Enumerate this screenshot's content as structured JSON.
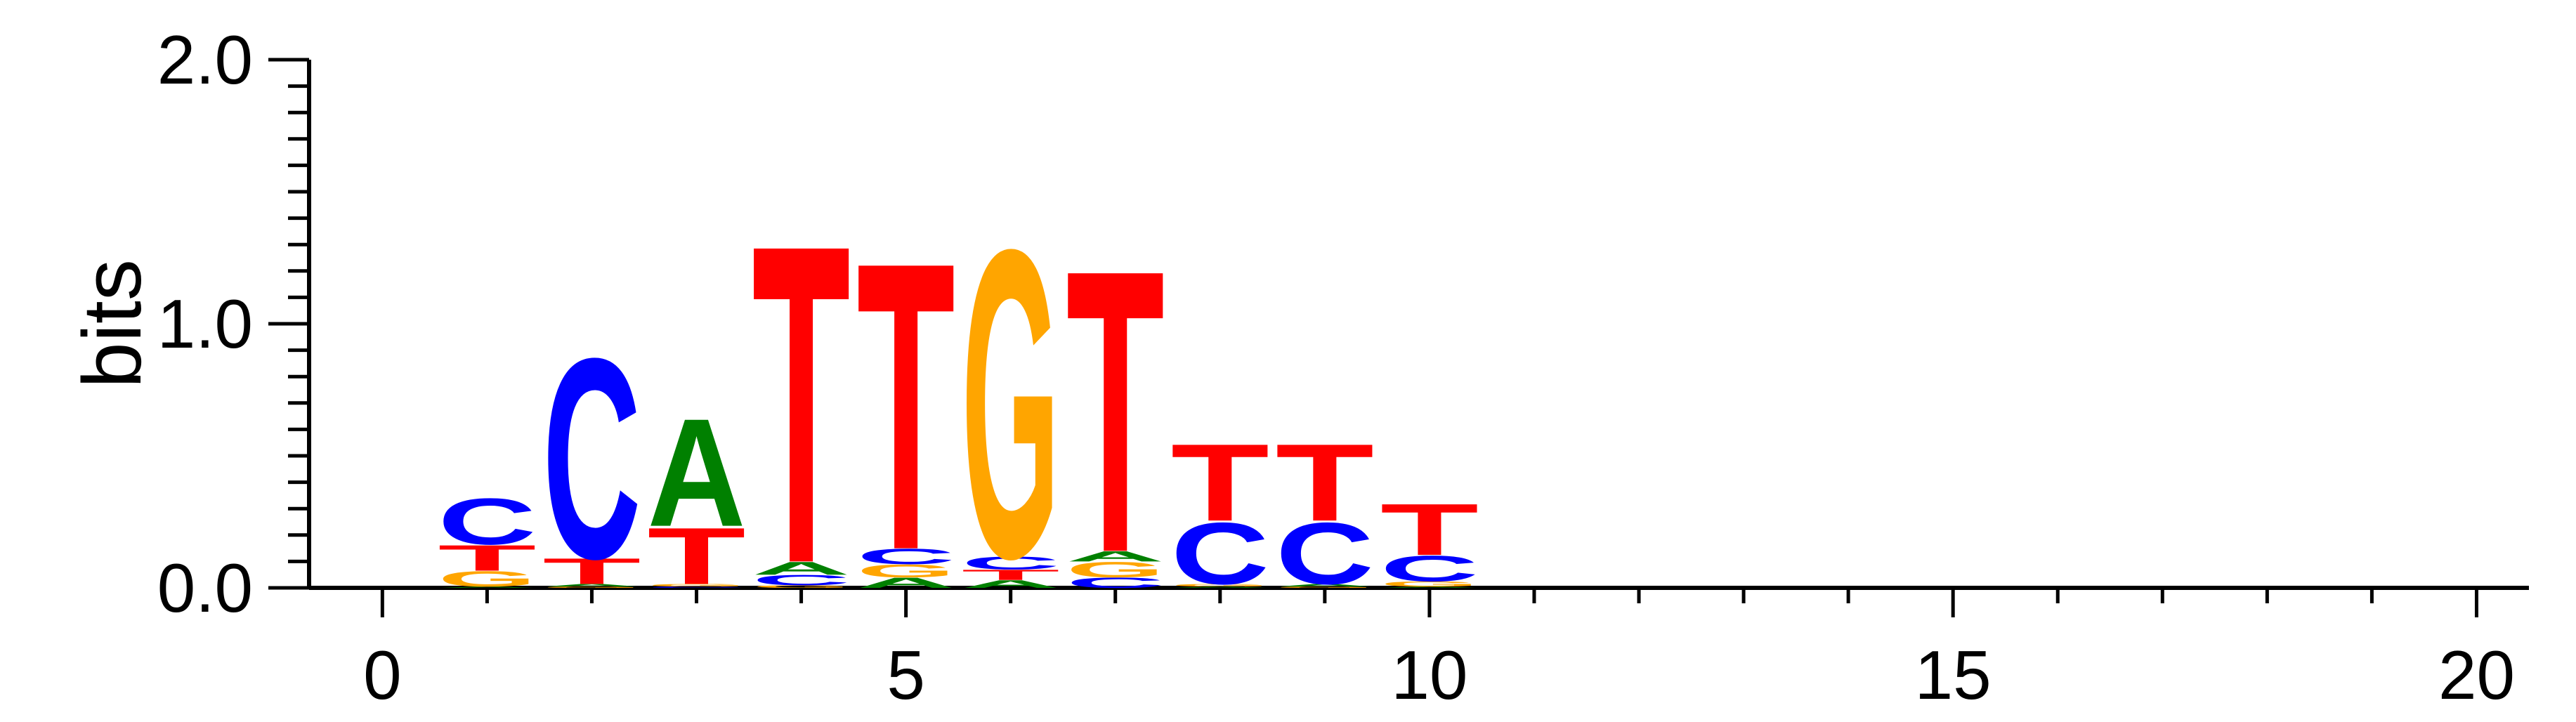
{
  "chart_data": {
    "type": "sequence-logo",
    "ylabel": "bits",
    "ylim": [
      0,
      2
    ],
    "xlim": [
      -0.7,
      20.5
    ],
    "y_ticks": [
      {
        "value": 0,
        "label": "0.0"
      },
      {
        "value": 1,
        "label": "1.0"
      },
      {
        "value": 2,
        "label": "2.0"
      }
    ],
    "x_ticks": [
      {
        "value": 0,
        "label": "0"
      },
      {
        "value": 5,
        "label": "5"
      },
      {
        "value": 10,
        "label": "10"
      },
      {
        "value": 15,
        "label": "15"
      },
      {
        "value": 20,
        "label": "20"
      }
    ],
    "colors": {
      "A": "#008000",
      "C": "#0000ff",
      "G": "#ffa500",
      "T": "#ff0000"
    },
    "positions": [
      {
        "position": 1,
        "letters": [
          {
            "base": "A",
            "bits": 0.005
          },
          {
            "base": "G",
            "bits": 0.06
          },
          {
            "base": "T",
            "bits": 0.1
          },
          {
            "base": "C",
            "bits": 0.18
          }
        ]
      },
      {
        "position": 2,
        "letters": [
          {
            "base": "G",
            "bits": 0.005
          },
          {
            "base": "A",
            "bits": 0.01
          },
          {
            "base": "T",
            "bits": 0.1
          },
          {
            "base": "C",
            "bits": 0.78
          }
        ]
      },
      {
        "position": 3,
        "letters": [
          {
            "base": "C",
            "bits": 0.005
          },
          {
            "base": "G",
            "bits": 0.01
          },
          {
            "base": "T",
            "bits": 0.22
          },
          {
            "base": "A",
            "bits": 0.42
          }
        ]
      },
      {
        "position": 4,
        "letters": [
          {
            "base": "G",
            "bits": 0.01
          },
          {
            "base": "C",
            "bits": 0.04
          },
          {
            "base": "A",
            "bits": 0.05
          },
          {
            "base": "T",
            "bits": 1.24
          }
        ]
      },
      {
        "position": 5,
        "letters": [
          {
            "base": "A",
            "bits": 0.04
          },
          {
            "base": "G",
            "bits": 0.05
          },
          {
            "base": "C",
            "bits": 0.06
          },
          {
            "base": "T",
            "bits": 1.12
          }
        ]
      },
      {
        "position": 6,
        "letters": [
          {
            "base": "A",
            "bits": 0.03
          },
          {
            "base": "T",
            "bits": 0.04
          },
          {
            "base": "C",
            "bits": 0.05
          },
          {
            "base": "G",
            "bits": 1.2
          }
        ]
      },
      {
        "position": 7,
        "letters": [
          {
            "base": "C",
            "bits": 0.04
          },
          {
            "base": "G",
            "bits": 0.06
          },
          {
            "base": "A",
            "bits": 0.04
          },
          {
            "base": "T",
            "bits": 1.1
          }
        ]
      },
      {
        "position": 8,
        "letters": [
          {
            "base": "A",
            "bits": 0.005
          },
          {
            "base": "G",
            "bits": 0.01
          },
          {
            "base": "C",
            "bits": 0.24
          },
          {
            "base": "T",
            "bits": 0.3
          }
        ]
      },
      {
        "position": 9,
        "letters": [
          {
            "base": "G",
            "bits": 0.005
          },
          {
            "base": "A",
            "bits": 0.01
          },
          {
            "base": "C",
            "bits": 0.24
          },
          {
            "base": "T",
            "bits": 0.3
          }
        ]
      },
      {
        "position": 10,
        "letters": [
          {
            "base": "A",
            "bits": 0.005
          },
          {
            "base": "G",
            "bits": 0.02
          },
          {
            "base": "C",
            "bits": 0.1
          },
          {
            "base": "T",
            "bits": 0.2
          }
        ]
      }
    ]
  }
}
